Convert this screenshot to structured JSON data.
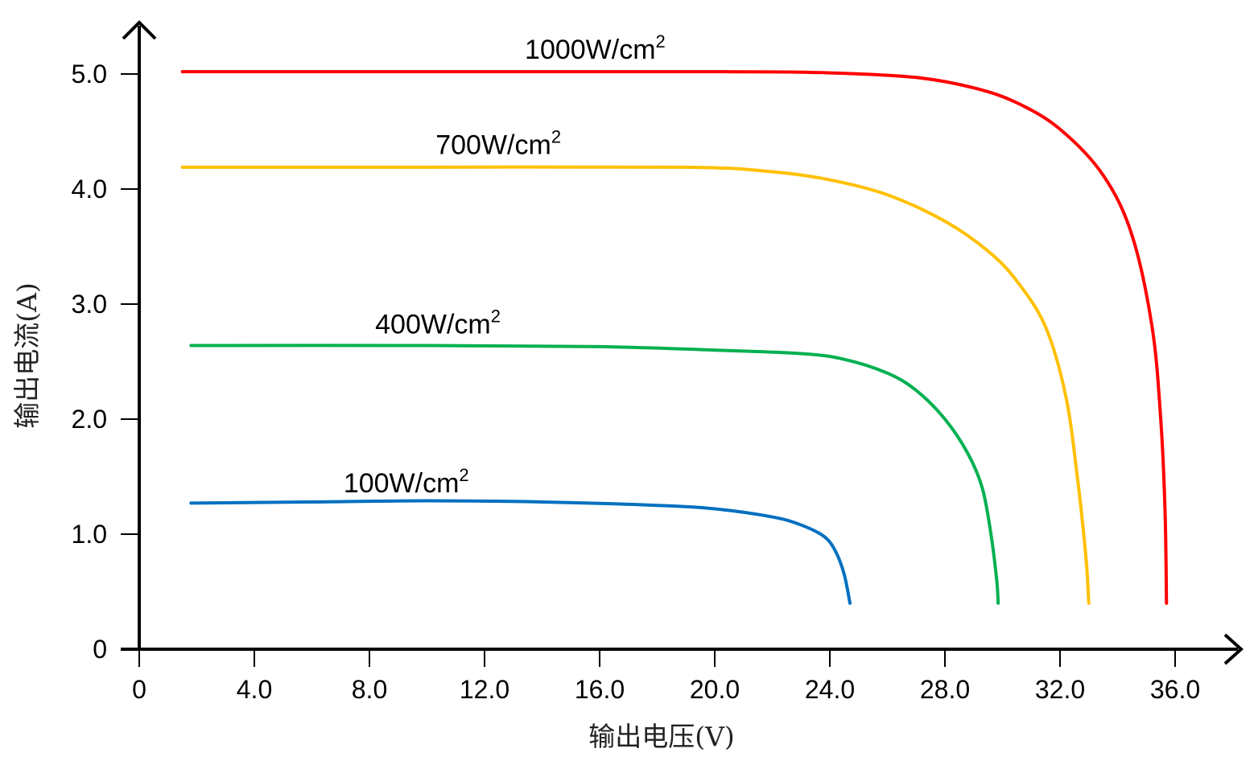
{
  "chart_data": {
    "type": "line",
    "xlabel": "输出电压(V)",
    "ylabel": "输出电流(A)",
    "xlim": [
      0,
      39.5
    ],
    "ylim": [
      0,
      5.5
    ],
    "x_ticks": [
      "0",
      "4.0",
      "8.0",
      "12.0",
      "16.0",
      "20.0",
      "24.0",
      "28.0",
      "32.0",
      "36.0"
    ],
    "x_tick_values": [
      0,
      4,
      8,
      12,
      16,
      20,
      24,
      28,
      32,
      36
    ],
    "y_ticks": [
      "0",
      "1.0",
      "2.0",
      "3.0",
      "4.0",
      "5.0"
    ],
    "y_tick_values": [
      0,
      1,
      2,
      3,
      4,
      5
    ],
    "grid": false,
    "legend": "inline",
    "series": [
      {
        "name": "1000W/cm",
        "name_sup": "2",
        "color": "#ff0000",
        "label_at": [
          13.4,
          5.05
        ],
        "points": [
          [
            1.5,
            5.02
          ],
          [
            10,
            5.02
          ],
          [
            20,
            5.02
          ],
          [
            24,
            5.01
          ],
          [
            27,
            4.97
          ],
          [
            29,
            4.88
          ],
          [
            30.5,
            4.75
          ],
          [
            32,
            4.52
          ],
          [
            33.5,
            4.12
          ],
          [
            34.5,
            3.6
          ],
          [
            35.2,
            2.8
          ],
          [
            35.5,
            2.0
          ],
          [
            35.65,
            1.2
          ],
          [
            35.7,
            0.4
          ]
        ]
      },
      {
        "name": "700W/cm",
        "name_sup": "2",
        "color": "#ffc000",
        "label_at": [
          10.3,
          4.22
        ],
        "points": [
          [
            1.5,
            4.19
          ],
          [
            10,
            4.19
          ],
          [
            19,
            4.19
          ],
          [
            22,
            4.15
          ],
          [
            24,
            4.08
          ],
          [
            26,
            3.95
          ],
          [
            28,
            3.72
          ],
          [
            29.5,
            3.46
          ],
          [
            30.5,
            3.2
          ],
          [
            31.5,
            2.8
          ],
          [
            32.2,
            2.2
          ],
          [
            32.6,
            1.5
          ],
          [
            32.9,
            0.8
          ],
          [
            33.0,
            0.4
          ]
        ]
      },
      {
        "name": "400W/cm",
        "name_sup": "2",
        "color": "#00b050",
        "label_at": [
          8.2,
          2.66
        ],
        "points": [
          [
            1.8,
            2.64
          ],
          [
            10,
            2.64
          ],
          [
            16,
            2.63
          ],
          [
            20,
            2.6
          ],
          [
            23,
            2.57
          ],
          [
            24.5,
            2.52
          ],
          [
            26,
            2.4
          ],
          [
            27,
            2.25
          ],
          [
            28,
            2.0
          ],
          [
            28.8,
            1.7
          ],
          [
            29.3,
            1.4
          ],
          [
            29.6,
            1.0
          ],
          [
            29.8,
            0.6
          ],
          [
            29.85,
            0.4
          ]
        ]
      },
      {
        "name": "100W/cm",
        "name_sup": "2",
        "color": "#0070c0",
        "label_at": [
          7.1,
          1.28
        ],
        "points": [
          [
            1.8,
            1.27
          ],
          [
            6,
            1.28
          ],
          [
            10,
            1.29
          ],
          [
            14,
            1.28
          ],
          [
            18,
            1.25
          ],
          [
            20,
            1.22
          ],
          [
            22,
            1.15
          ],
          [
            23,
            1.08
          ],
          [
            23.8,
            0.98
          ],
          [
            24.2,
            0.85
          ],
          [
            24.5,
            0.65
          ],
          [
            24.7,
            0.4
          ]
        ]
      }
    ]
  }
}
